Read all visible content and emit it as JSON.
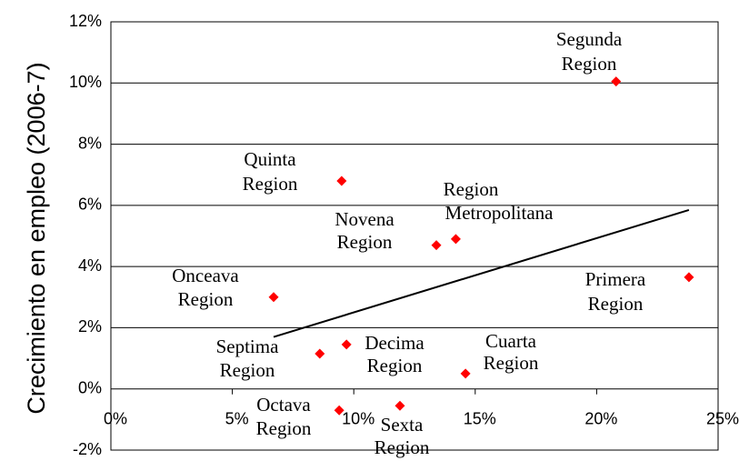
{
  "chart_data": {
    "type": "scatter",
    "y_axis_label": "Crecimiento en empleo (2006-7)",
    "xlim": [
      0,
      25
    ],
    "ylim": [
      -2,
      12
    ],
    "xticks": [
      {
        "value": 0,
        "label": "0%"
      },
      {
        "value": 5,
        "label": "5%"
      },
      {
        "value": 10,
        "label": "10%"
      },
      {
        "value": 15,
        "label": "15%"
      },
      {
        "value": 20,
        "label": "20%"
      },
      {
        "value": 25,
        "label": "25%"
      }
    ],
    "yticks": [
      {
        "value": -2,
        "label": "-2%"
      },
      {
        "value": 0,
        "label": "0%"
      },
      {
        "value": 2,
        "label": "2%"
      },
      {
        "value": 4,
        "label": "4%"
      },
      {
        "value": 6,
        "label": "6%"
      },
      {
        "value": 8,
        "label": "8%"
      },
      {
        "value": 10,
        "label": "10%"
      },
      {
        "value": 12,
        "label": "12%"
      }
    ],
    "grid": true,
    "series": [
      {
        "color": "#ff0000",
        "x": [
          20.8,
          9.5,
          13.4,
          14.2,
          23.8,
          6.7,
          8.6,
          9.7,
          14.6,
          9.4,
          11.9
        ],
        "values": [
          10.05,
          6.8,
          4.7,
          4.9,
          3.65,
          3.0,
          1.15,
          1.45,
          0.5,
          -0.7,
          -0.55
        ],
        "labels": [
          [
            "Segunda",
            "Region"
          ],
          [
            "Quinta",
            "Region"
          ],
          [
            "Novena",
            "Region"
          ],
          [
            "Region",
            "Metropolitana"
          ],
          [
            "Primera",
            "Region"
          ],
          [
            "Onceava",
            "Region"
          ],
          [
            "Septima",
            "Region"
          ],
          [
            "Decima",
            "Region"
          ],
          [
            "Cuarta",
            "Region"
          ],
          [
            "Octava",
            "Region"
          ],
          [
            "Sexta",
            "Region"
          ]
        ]
      }
    ],
    "trendline": {
      "color": "#000000",
      "x": [
        6.7,
        23.8
      ],
      "values": [
        1.7,
        5.85
      ]
    }
  }
}
